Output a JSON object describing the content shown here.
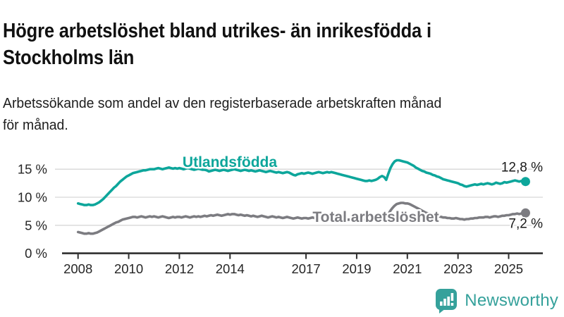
{
  "header": {
    "title_lines": [
      "Högre arbetslöshet bland utrikes- än inrikesfödda i",
      "Stockholms län"
    ],
    "subtitle_lines": [
      "Arbetssökande som andel av den registerbaserade arbetskraften månad",
      "för månad."
    ]
  },
  "chart_data": {
    "type": "line",
    "unit": "%",
    "grid": true,
    "legend": "inline-labels",
    "x_ticks": [
      2008,
      2010,
      2012,
      2014,
      2017,
      2019,
      2021,
      2023,
      2025
    ],
    "y_ticks": [
      0,
      5,
      10,
      15
    ],
    "y_tick_suffix": " %",
    "ylim": [
      0,
      17.5
    ],
    "xlim": [
      2007.35,
      2026.35
    ],
    "x_start": 2008.0,
    "points_per_year": 12,
    "series": [
      {
        "name": "Utlandsfödda",
        "color": "#0da69b",
        "end_label": "12,8 %",
        "end_value": 12.8,
        "values": [
          8.9,
          8.8,
          8.7,
          8.6,
          8.6,
          8.7,
          8.6,
          8.6,
          8.7,
          8.9,
          9.1,
          9.4,
          9.7,
          10.1,
          10.5,
          10.9,
          11.3,
          11.7,
          12.0,
          12.4,
          12.8,
          13.1,
          13.4,
          13.7,
          13.9,
          14.1,
          14.3,
          14.4,
          14.5,
          14.6,
          14.7,
          14.8,
          14.8,
          14.9,
          15.0,
          15.0,
          15.0,
          15.1,
          15.2,
          15.1,
          15.0,
          15.1,
          15.2,
          15.3,
          15.2,
          15.1,
          15.2,
          15.1,
          15.2,
          15.1,
          15.0,
          15.1,
          15.2,
          15.1,
          15.0,
          14.9,
          15.0,
          15.1,
          15.0,
          14.9,
          14.9,
          14.8,
          14.6,
          14.7,
          14.8,
          14.9,
          14.8,
          14.7,
          14.8,
          14.9,
          14.8,
          14.7,
          14.8,
          14.9,
          15.0,
          14.9,
          14.8,
          14.7,
          14.8,
          14.9,
          14.8,
          14.7,
          14.8,
          14.7,
          14.6,
          14.7,
          14.8,
          14.7,
          14.6,
          14.5,
          14.6,
          14.7,
          14.6,
          14.5,
          14.4,
          14.5,
          14.4,
          14.3,
          14.4,
          14.5,
          14.4,
          14.2,
          14.0,
          13.9,
          14.1,
          14.2,
          14.3,
          14.2,
          14.3,
          14.4,
          14.3,
          14.2,
          14.3,
          14.4,
          14.5,
          14.4,
          14.3,
          14.4,
          14.5,
          14.4,
          14.5,
          14.4,
          14.3,
          14.2,
          14.1,
          14.0,
          13.9,
          13.8,
          13.7,
          13.6,
          13.5,
          13.4,
          13.3,
          13.2,
          13.1,
          13.0,
          12.9,
          12.9,
          13.0,
          12.9,
          13.0,
          13.1,
          13.3,
          13.6,
          13.8,
          13.6,
          13.1,
          14.2,
          15.2,
          15.9,
          16.4,
          16.6,
          16.6,
          16.5,
          16.4,
          16.3,
          16.2,
          16.0,
          15.8,
          15.6,
          15.3,
          15.1,
          14.9,
          14.7,
          14.6,
          14.4,
          14.3,
          14.2,
          14.0,
          13.9,
          13.7,
          13.6,
          13.4,
          13.2,
          13.1,
          13.0,
          12.9,
          12.8,
          12.7,
          12.6,
          12.5,
          12.3,
          12.2,
          12.0,
          11.9,
          12.0,
          12.1,
          12.2,
          12.3,
          12.2,
          12.3,
          12.4,
          12.3,
          12.4,
          12.5,
          12.4,
          12.3,
          12.4,
          12.6,
          12.5,
          12.4,
          12.5,
          12.7,
          12.6,
          12.7,
          12.8,
          12.9,
          13.0,
          12.9,
          12.8,
          12.9,
          12.9,
          12.8
        ]
      },
      {
        "name": "Total arbetslöshet",
        "color": "#7c7c81",
        "end_label": "7,2 %",
        "end_value": 7.2,
        "values": [
          3.8,
          3.7,
          3.6,
          3.5,
          3.5,
          3.6,
          3.5,
          3.5,
          3.6,
          3.7,
          3.9,
          4.1,
          4.3,
          4.5,
          4.7,
          4.9,
          5.1,
          5.3,
          5.5,
          5.6,
          5.8,
          6.0,
          6.1,
          6.2,
          6.3,
          6.4,
          6.5,
          6.5,
          6.4,
          6.5,
          6.6,
          6.5,
          6.4,
          6.5,
          6.6,
          6.5,
          6.6,
          6.5,
          6.4,
          6.5,
          6.6,
          6.5,
          6.4,
          6.3,
          6.4,
          6.5,
          6.4,
          6.5,
          6.5,
          6.4,
          6.5,
          6.6,
          6.5,
          6.4,
          6.5,
          6.6,
          6.5,
          6.6,
          6.5,
          6.6,
          6.7,
          6.6,
          6.7,
          6.8,
          6.7,
          6.8,
          6.9,
          6.8,
          6.7,
          6.8,
          6.9,
          7.0,
          6.9,
          7.0,
          7.0,
          6.9,
          6.8,
          6.9,
          6.8,
          6.7,
          6.8,
          6.7,
          6.6,
          6.7,
          6.6,
          6.5,
          6.6,
          6.7,
          6.6,
          6.5,
          6.4,
          6.5,
          6.6,
          6.5,
          6.4,
          6.5,
          6.4,
          6.3,
          6.4,
          6.5,
          6.4,
          6.3,
          6.2,
          6.3,
          6.4,
          6.3,
          6.2,
          6.3,
          6.3,
          6.2,
          6.3,
          6.4,
          6.3,
          6.2,
          6.1,
          6.2,
          6.3,
          6.2,
          6.2,
          6.3,
          6.2,
          6.1,
          6.1,
          6.0,
          6.0,
          6.1,
          6.0,
          5.9,
          6.0,
          6.0,
          5.9,
          6.0,
          6.0,
          5.9,
          5.9,
          6.0,
          6.0,
          6.1,
          6.0,
          6.0,
          6.1,
          6.1,
          6.2,
          6.3,
          6.2,
          6.1,
          6.3,
          7.0,
          7.6,
          8.1,
          8.5,
          8.8,
          8.9,
          9.0,
          9.0,
          8.9,
          8.9,
          8.8,
          8.6,
          8.4,
          8.2,
          8.0,
          7.8,
          7.6,
          7.4,
          7.2,
          7.1,
          7.0,
          6.9,
          6.8,
          6.7,
          6.6,
          6.5,
          6.4,
          6.4,
          6.3,
          6.3,
          6.2,
          6.2,
          6.3,
          6.2,
          6.1,
          6.1,
          6.0,
          6.1,
          6.1,
          6.2,
          6.2,
          6.3,
          6.3,
          6.4,
          6.4,
          6.4,
          6.5,
          6.5,
          6.4,
          6.5,
          6.6,
          6.6,
          6.5,
          6.6,
          6.7,
          6.7,
          6.8,
          6.8,
          6.9,
          7.0,
          7.0,
          7.1,
          7.0,
          7.1,
          7.2,
          7.2
        ]
      }
    ]
  },
  "footer": {
    "brand": "Newsworthy",
    "brand_color": "#35a19b"
  },
  "colors": {
    "accent_teal": "#0da69b",
    "series_gray": "#7c7c81",
    "gridline": "#d7d7d7",
    "axis": "#2f2f2f",
    "title_text": "#111111"
  }
}
